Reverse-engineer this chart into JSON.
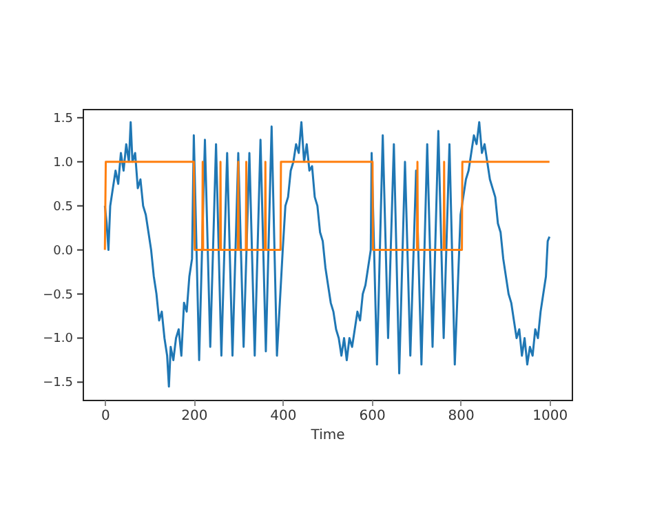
{
  "chart_data": {
    "type": "line",
    "xlabel": "Time",
    "xlim": [
      -50,
      1050
    ],
    "ylim": [
      -1.7,
      1.6
    ],
    "xticks": [
      0,
      200,
      400,
      600,
      800,
      1000
    ],
    "yticks": [
      {
        "value": -1.5,
        "label": "−1.5"
      },
      {
        "value": -1.0,
        "label": "−1.0"
      },
      {
        "value": -0.5,
        "label": "−0.5"
      },
      {
        "value": 0,
        "label": "0.0"
      },
      {
        "value": 0.5,
        "label": "0.5"
      },
      {
        "value": 1.0,
        "label": "1.0"
      },
      {
        "value": 1.5,
        "label": "1.5"
      }
    ],
    "grid": false,
    "line_style": "solid",
    "marker": "none",
    "series": [
      {
        "color": "#1f77b4",
        "x": [
          0,
          4,
          8,
          12,
          18,
          24,
          30,
          36,
          42,
          48,
          54,
          58,
          62,
          68,
          74,
          80,
          86,
          92,
          98,
          104,
          110,
          116,
          122,
          128,
          134,
          140,
          144,
          148,
          154,
          160,
          166,
          172,
          178,
          184,
          190,
          196,
          200,
          212,
          225,
          237,
          250,
          262,
          275,
          287,
          300,
          312,
          325,
          337,
          350,
          362,
          375,
          387,
          400,
          406,
          412,
          418,
          424,
          430,
          436,
          442,
          448,
          454,
          460,
          466,
          472,
          478,
          484,
          490,
          496,
          502,
          508,
          514,
          520,
          526,
          532,
          538,
          544,
          550,
          556,
          562,
          568,
          574,
          580,
          586,
          592,
          598,
          600,
          612,
          625,
          637,
          650,
          662,
          675,
          687,
          700,
          712,
          725,
          737,
          750,
          762,
          775,
          787,
          800,
          806,
          812,
          818,
          824,
          830,
          836,
          842,
          848,
          854,
          860,
          866,
          872,
          878,
          884,
          890,
          896,
          902,
          908,
          914,
          920,
          926,
          932,
          938,
          944,
          950,
          956,
          962,
          968,
          974,
          980,
          986,
          992,
          996,
          1000
        ],
        "values": [
          0.5,
          0.3,
          0.0,
          0.5,
          0.7,
          0.9,
          0.75,
          1.1,
          0.9,
          1.2,
          1.0,
          1.45,
          1.0,
          1.1,
          0.7,
          0.8,
          0.5,
          0.4,
          0.2,
          0.0,
          -0.3,
          -0.5,
          -0.8,
          -0.7,
          -1.0,
          -1.2,
          -1.55,
          -1.1,
          -1.25,
          -1.0,
          -0.9,
          -1.2,
          -0.6,
          -0.7,
          -0.3,
          -0.1,
          1.3,
          -1.25,
          1.25,
          -1.1,
          1.2,
          -1.2,
          1.1,
          -1.2,
          1.1,
          -1.1,
          1.1,
          -1.2,
          1.25,
          -1.15,
          1.4,
          -1.2,
          0.0,
          0.5,
          0.6,
          0.9,
          1.0,
          1.2,
          1.1,
          1.45,
          1.0,
          1.2,
          0.9,
          0.95,
          0.6,
          0.5,
          0.2,
          0.1,
          -0.2,
          -0.4,
          -0.6,
          -0.7,
          -0.9,
          -1.0,
          -1.2,
          -1.0,
          -1.25,
          -1.0,
          -1.1,
          -0.9,
          -0.7,
          -0.8,
          -0.5,
          -0.4,
          -0.2,
          0.0,
          1.1,
          -1.3,
          1.3,
          -1.0,
          1.2,
          -1.4,
          1.0,
          -1.2,
          0.9,
          -1.3,
          1.2,
          -1.1,
          1.35,
          -1.0,
          1.2,
          -1.3,
          0.4,
          0.6,
          0.8,
          0.9,
          1.1,
          1.3,
          1.2,
          1.45,
          1.1,
          1.2,
          1.0,
          0.8,
          0.7,
          0.6,
          0.3,
          0.2,
          -0.1,
          -0.3,
          -0.5,
          -0.6,
          -0.8,
          -1.0,
          -0.9,
          -1.2,
          -1.0,
          -1.3,
          -1.1,
          -1.2,
          -0.9,
          -1.0,
          -0.7,
          -0.5,
          -0.3,
          0.1,
          0.15
        ]
      },
      {
        "color": "#ff7f0e",
        "x": [
          0,
          2,
          200,
          202,
          219,
          220,
          221,
          259,
          260,
          261,
          299,
          300,
          301,
          317,
          318,
          319,
          360,
          361,
          362,
          395,
          396,
          602,
          603,
          702,
          703,
          704,
          762,
          763,
          764,
          803,
          804,
          1000
        ],
        "values": [
          0,
          1,
          1,
          0,
          0,
          1,
          0,
          0,
          1,
          0,
          0,
          1,
          0,
          0,
          1,
          0,
          0,
          1,
          0,
          0,
          1,
          1,
          0,
          0,
          1,
          0,
          0,
          1,
          0,
          0,
          1,
          1
        ]
      }
    ]
  }
}
